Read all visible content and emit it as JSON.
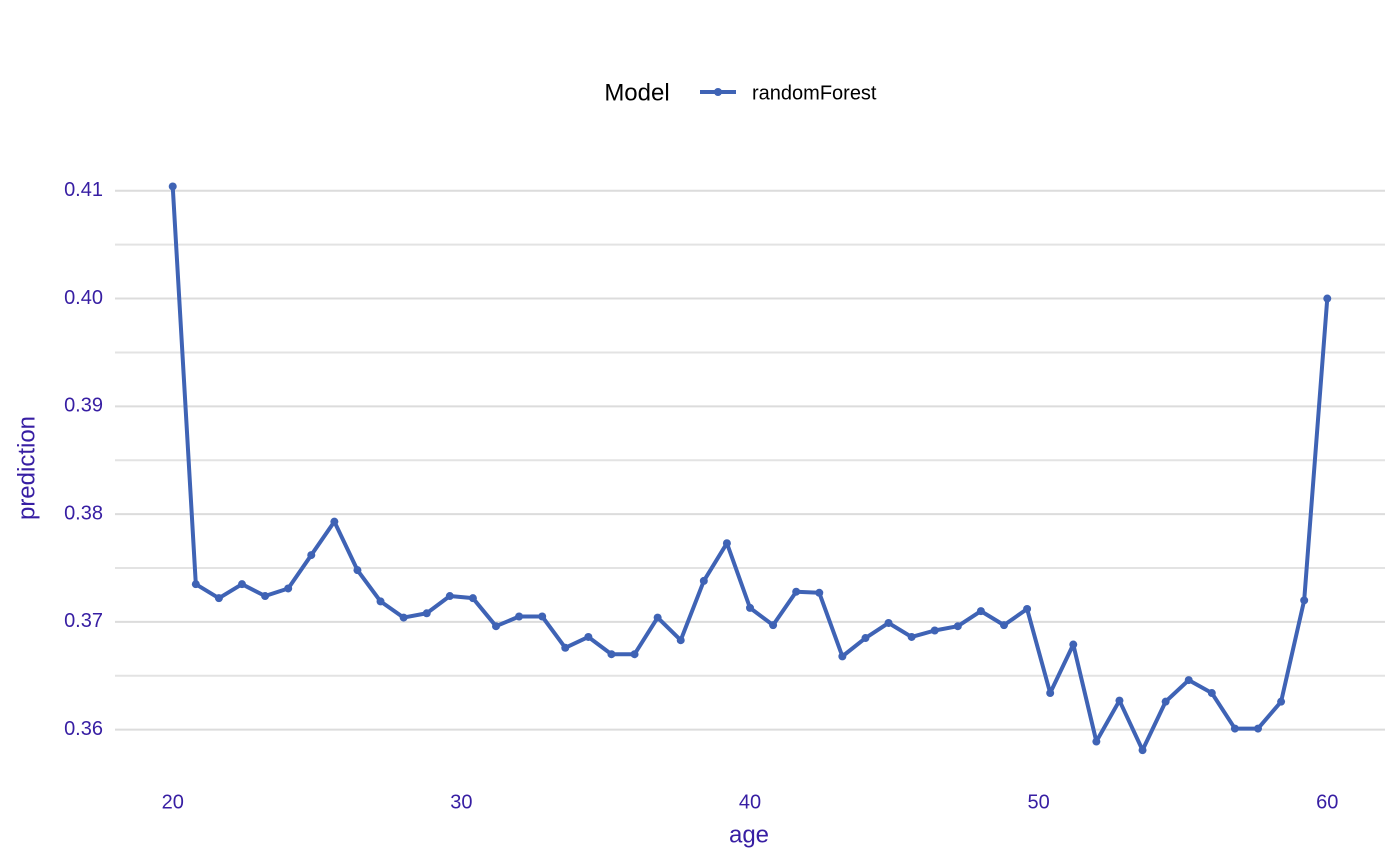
{
  "chart_data": {
    "type": "line",
    "x_label": "age",
    "y_label": "prediction",
    "legend_title": "Model",
    "legend_position": "top",
    "x": [
      20,
      20.8,
      21.6,
      22.4,
      23.2,
      24,
      24.8,
      25.6,
      26.4,
      27.2,
      28,
      28.8,
      29.6,
      30.4,
      31.2,
      32,
      32.8,
      33.6,
      34.4,
      35.2,
      36,
      36.8,
      37.6,
      38.4,
      39.2,
      40,
      40.8,
      41.6,
      42.4,
      43.2,
      44,
      44.8,
      45.6,
      46.4,
      47.2,
      48,
      48.8,
      49.6,
      50.4,
      51.2,
      52,
      52.8,
      53.6,
      54.4,
      55.2,
      56,
      56.8,
      57.6,
      58.4,
      59.2,
      60
    ],
    "series": [
      {
        "name": "randomForest",
        "color": "#3f63b5",
        "values": [
          0.4104,
          0.3735,
          0.3722,
          0.3735,
          0.3724,
          0.3731,
          0.3762,
          0.3793,
          0.3748,
          0.3719,
          0.3704,
          0.3708,
          0.3724,
          0.3722,
          0.3696,
          0.3705,
          0.3705,
          0.3676,
          0.3686,
          0.367,
          0.367,
          0.3704,
          0.3683,
          0.3738,
          0.3773,
          0.3713,
          0.3697,
          0.3728,
          0.3727,
          0.3668,
          0.3685,
          0.3699,
          0.3686,
          0.3692,
          0.3696,
          0.371,
          0.3697,
          0.3712,
          0.3634,
          0.3679,
          0.3589,
          0.3627,
          0.3581,
          0.3626,
          0.3646,
          0.3634,
          0.3601,
          0.3601,
          0.3626,
          0.372,
          0.4
        ]
      }
    ],
    "xlim": [
      18,
      62
    ],
    "xticks": [
      20,
      30,
      40,
      50,
      60
    ],
    "ylim": [
      0.357,
      0.411
    ],
    "yticks": [
      {
        "value": 0.36,
        "label": "0.36"
      },
      {
        "value": 0.37,
        "label": "0.37"
      },
      {
        "value": 0.38,
        "label": "0.38"
      },
      {
        "value": 0.39,
        "label": "0.39"
      },
      {
        "value": 0.4,
        "label": "0.40"
      },
      {
        "value": 0.41,
        "label": "0.41"
      }
    ],
    "y_minor_ticks": [
      0.365,
      0.375,
      0.385,
      0.395,
      0.405
    ],
    "grid": true
  }
}
